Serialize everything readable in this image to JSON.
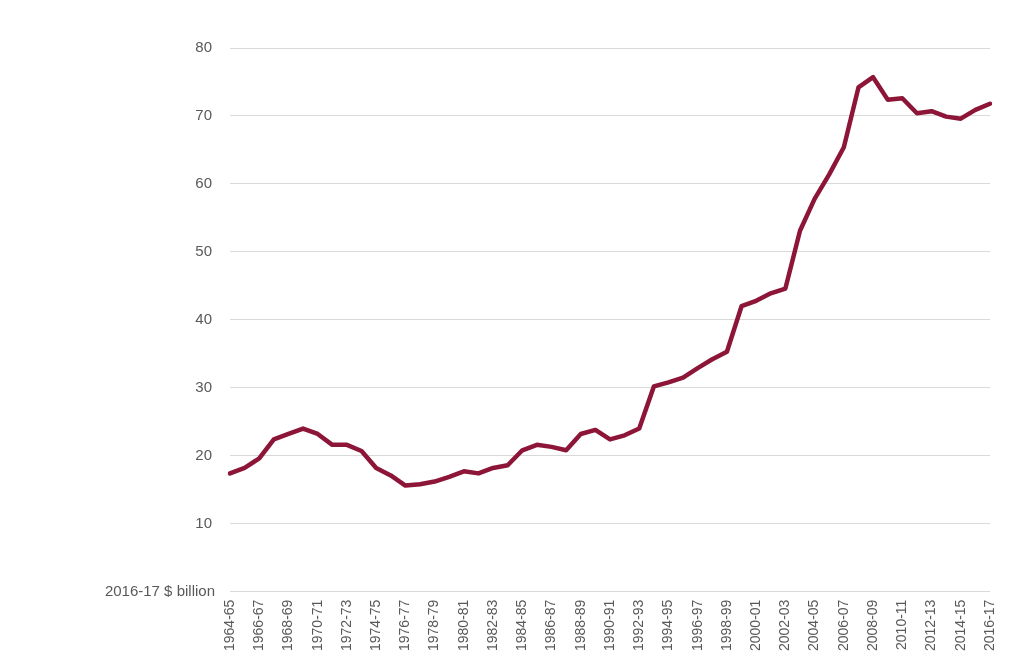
{
  "chart_data": {
    "type": "line",
    "ylabel": "2016-17 $ billion",
    "categories": [
      "1964-65",
      null,
      "1966-67",
      null,
      "1968-69",
      null,
      "1970-71",
      null,
      "1972-73",
      null,
      "1974-75",
      null,
      "1976-77",
      null,
      "1978-79",
      null,
      "1980-81",
      null,
      "1982-83",
      null,
      "1984-85",
      null,
      "1986-87",
      null,
      "1988-89",
      null,
      "1990-91",
      null,
      "1992-93",
      null,
      "1994-95",
      null,
      "1996-97",
      null,
      "1998-99",
      null,
      "2000-01",
      null,
      "2002-03",
      null,
      "2004-05",
      null,
      "2006-07",
      null,
      "2008-09",
      null,
      "2010-11",
      null,
      "2012-13",
      null,
      "2014-15",
      null,
      "2016-17"
    ],
    "series": [
      {
        "color": "#8c1538",
        "values": [
          17.4,
          18.2,
          19.6,
          22.4,
          23.2,
          24.0,
          23.2,
          21.6,
          21.6,
          20.7,
          18.2,
          17.1,
          15.6,
          15.8,
          16.2,
          16.9,
          17.7,
          17.4,
          18.2,
          18.6,
          20.8,
          21.6,
          21.3,
          20.8,
          23.2,
          23.8,
          22.4,
          23.0,
          24.0,
          30.2,
          30.8,
          31.5,
          32.9,
          34.2,
          35.3,
          42.0,
          42.8,
          43.9,
          44.6,
          53.1,
          57.8,
          61.4,
          65.4,
          74.2,
          75.7,
          72.4,
          72.6,
          70.4,
          70.7,
          69.9,
          69.6,
          70.9,
          71.8
        ]
      }
    ],
    "ylim": [
      0,
      80
    ],
    "yticks": [
      {
        "value": 0,
        "label": null
      },
      10,
      20,
      30,
      40,
      50,
      60,
      70,
      80
    ],
    "grid": "y",
    "legend": false,
    "marker": "none",
    "line_style": "solid"
  }
}
